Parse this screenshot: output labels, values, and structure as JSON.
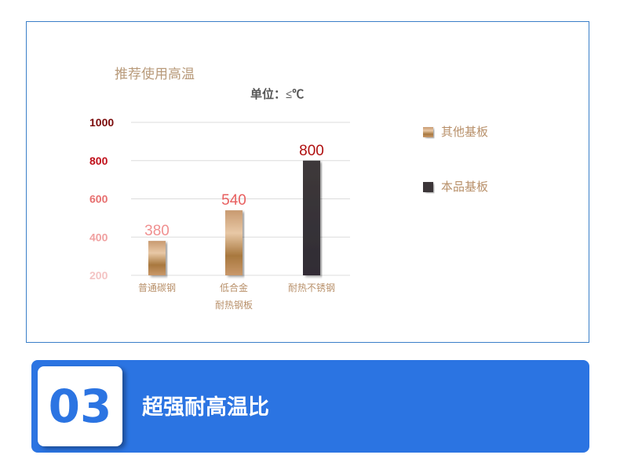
{
  "chart_data": {
    "type": "bar",
    "title": "推荐使用高温",
    "subtitle": "单位：≤℃",
    "categories": [
      "普通碳钢",
      "低合金\n耐热钢板",
      "耐热不锈钢"
    ],
    "values": [
      380,
      540,
      800
    ],
    "data_labels": [
      "380",
      "540",
      "800"
    ],
    "yticks": [
      "200",
      "400",
      "600",
      "800",
      "1000"
    ],
    "ylim": [
      200,
      1000
    ],
    "grid": true,
    "legend": [
      {
        "name": "其他基板",
        "color": "#b88a5c"
      },
      {
        "name": "本品基板",
        "color": "#3a3538"
      }
    ],
    "legend_position": "right",
    "ytick_colors": [
      "#f4c4c4",
      "#f0a0a0",
      "#e77070",
      "#c0101a",
      "#7a0a0a"
    ],
    "label_colors": [
      "#f09090",
      "#e86060",
      "#b01010"
    ]
  },
  "banner": {
    "number": "03",
    "title": "超强耐高温比",
    "color": "#2b74e2"
  }
}
